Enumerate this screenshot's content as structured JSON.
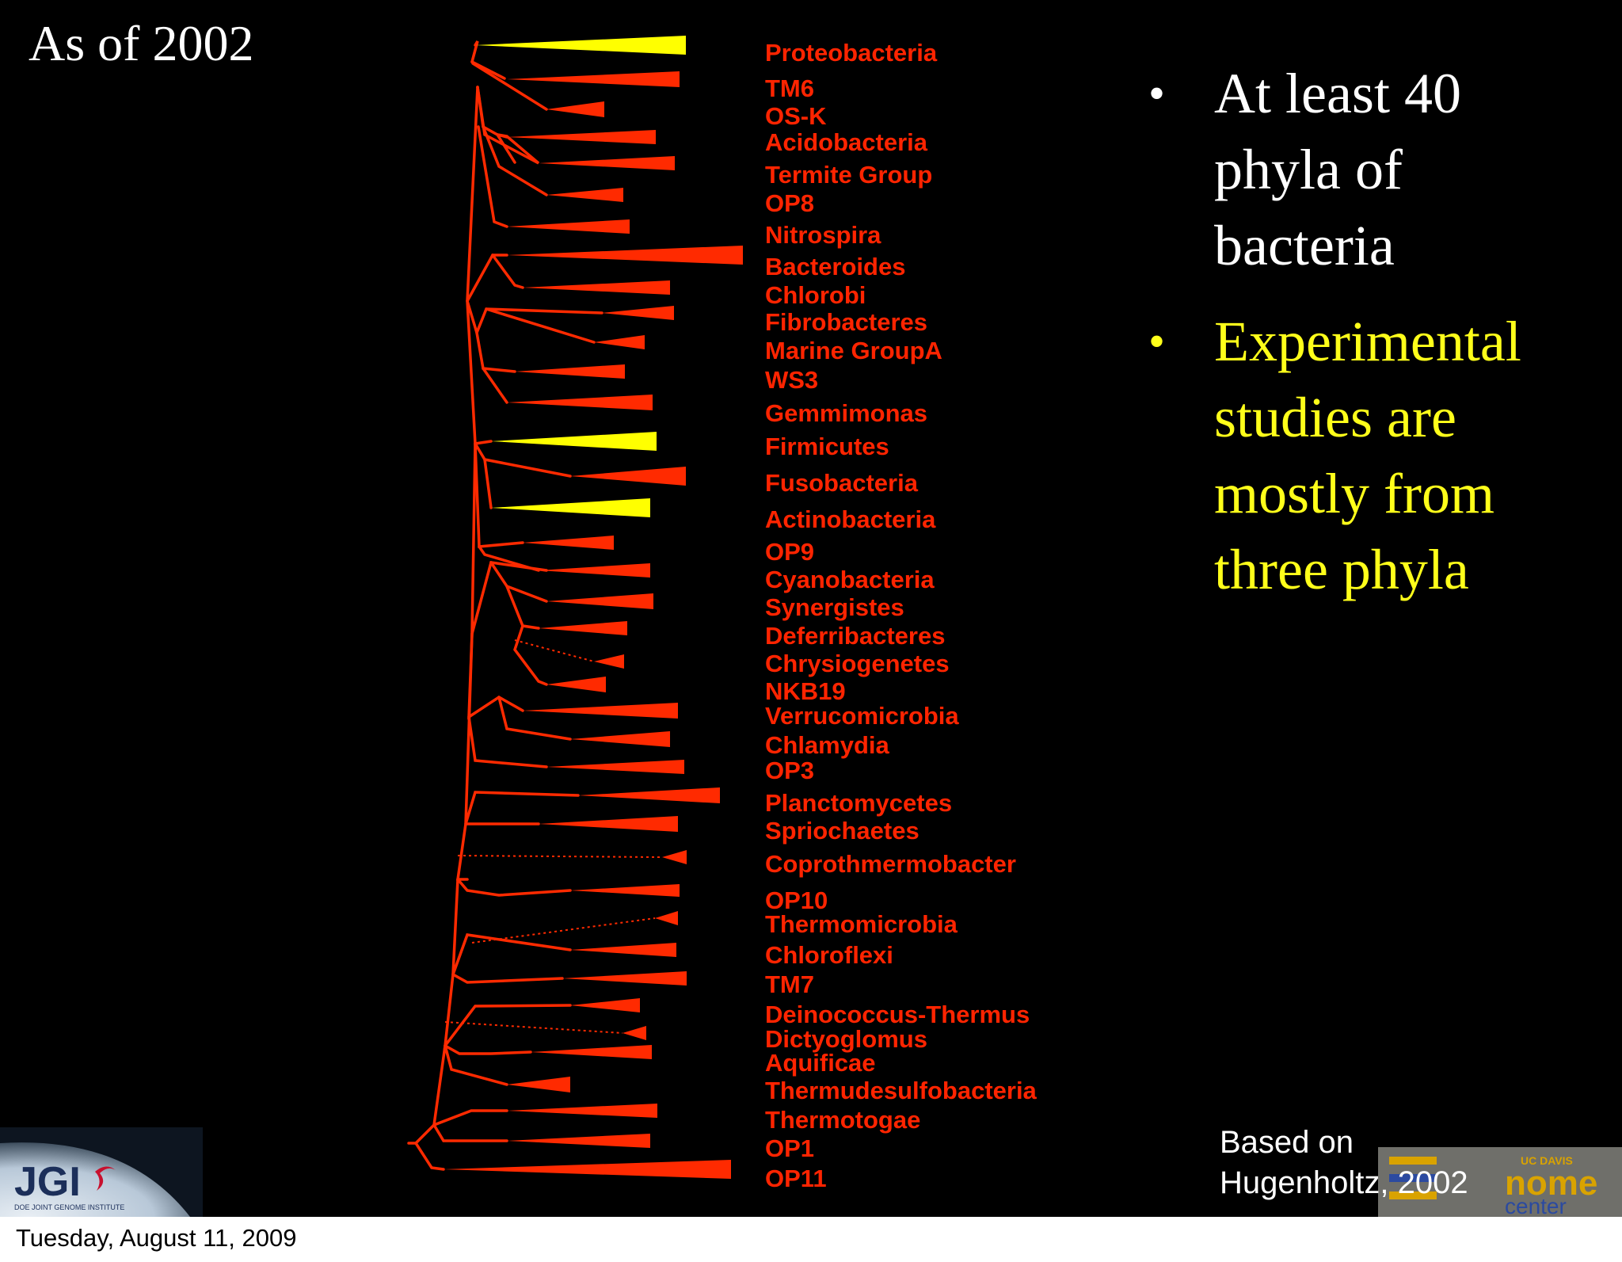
{
  "slide": {
    "title": "As of 2002",
    "date": "Tuesday, August 11, 2009",
    "bullets": [
      {
        "lines": [
          "At least 40",
          "phyla of",
          "bacteria"
        ],
        "color": "#ffffff"
      },
      {
        "lines": [
          "Experimental",
          "studies are",
          "mostly from",
          "three phyla"
        ],
        "color": "#ffff1a"
      }
    ],
    "credit": [
      "Based on",
      "Hugenholtz, 2002"
    ]
  },
  "tree": {
    "branch_color": "#ff2a00",
    "label_color": "#ff2400",
    "highlight_color": "#ffff00",
    "phyla": [
      {
        "name": "Proteobacteria",
        "highlight": true
      },
      {
        "name": "TM6"
      },
      {
        "name": "OS-K"
      },
      {
        "name": "Acidobacteria"
      },
      {
        "name": "Termite Group"
      },
      {
        "name": "OP8"
      },
      {
        "name": "Nitrospira"
      },
      {
        "name": "Bacteroides"
      },
      {
        "name": "Chlorobi"
      },
      {
        "name": "Fibrobacteres"
      },
      {
        "name": "Marine GroupA"
      },
      {
        "name": "WS3"
      },
      {
        "name": "Gemmimonas"
      },
      {
        "name": "Firmicutes",
        "highlight": true
      },
      {
        "name": "Fusobacteria"
      },
      {
        "name": "Actinobacteria",
        "highlight": true
      },
      {
        "name": "OP9"
      },
      {
        "name": "Cyanobacteria"
      },
      {
        "name": "Synergistes"
      },
      {
        "name": "Deferribacteres"
      },
      {
        "name": "Chrysiogenetes"
      },
      {
        "name": "NKB19"
      },
      {
        "name": "Verrucomicrobia"
      },
      {
        "name": "Chlamydia"
      },
      {
        "name": "OP3"
      },
      {
        "name": "Planctomycetes"
      },
      {
        "name": "Spriochaetes"
      },
      {
        "name": "Coprothmermobacter"
      },
      {
        "name": "OP10"
      },
      {
        "name": "Thermomicrobia"
      },
      {
        "name": "Chloroflexi"
      },
      {
        "name": "TM7"
      },
      {
        "name": "Deinococcus-Thermus"
      },
      {
        "name": "Dictyoglomus"
      },
      {
        "name": "Aquificae"
      },
      {
        "name": "Thermudesulfobacteria"
      },
      {
        "name": "Thermotogae"
      },
      {
        "name": "OP1"
      },
      {
        "name": "OP11"
      }
    ]
  },
  "logos": {
    "jgi": {
      "text": "JGI",
      "subtitle": "DOE JOINT GENOME INSTITUTE"
    },
    "genome_center": {
      "small": "UC DAVIS",
      "main": "nome",
      "sub": "center"
    }
  }
}
